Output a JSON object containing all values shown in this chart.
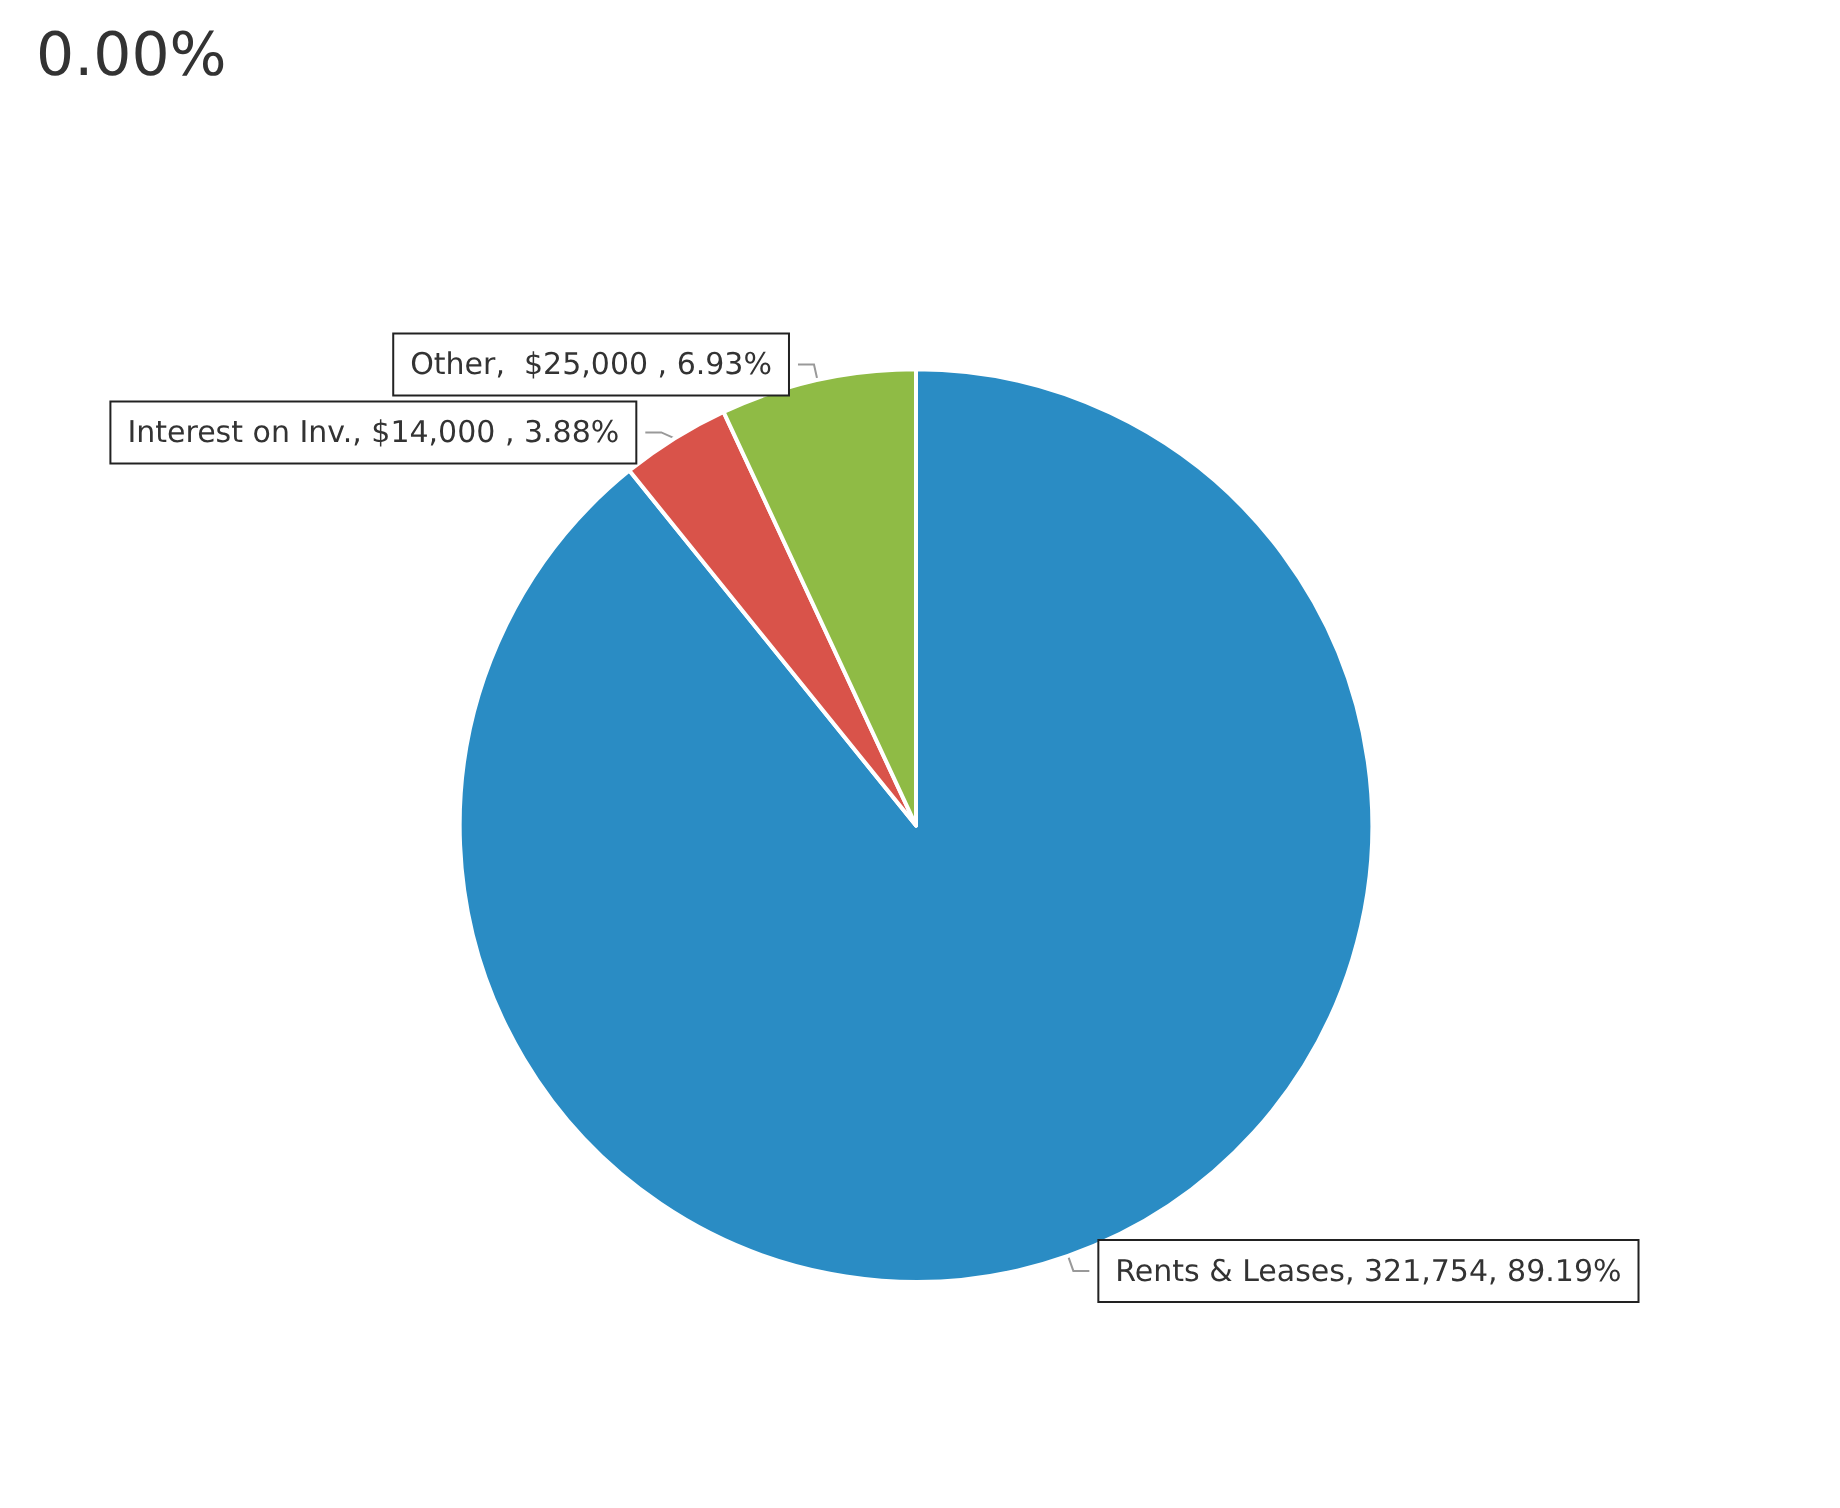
{
  "chart_data": {
    "type": "pie",
    "categories": [
      "Rents & Leases",
      "Interest on Inv.",
      "Other"
    ],
    "values": [
      321754,
      14000,
      25000
    ],
    "colors": [
      "#2a8cc4",
      "#d9534a",
      "#8fbb45"
    ],
    "value_labels": [
      ", 321,754, 89.19%",
      ", $14,000 , 3.88%",
      ",  $25,000 , 6.93%"
    ],
    "annotations": [
      "0.00%"
    ],
    "legend": false
  }
}
